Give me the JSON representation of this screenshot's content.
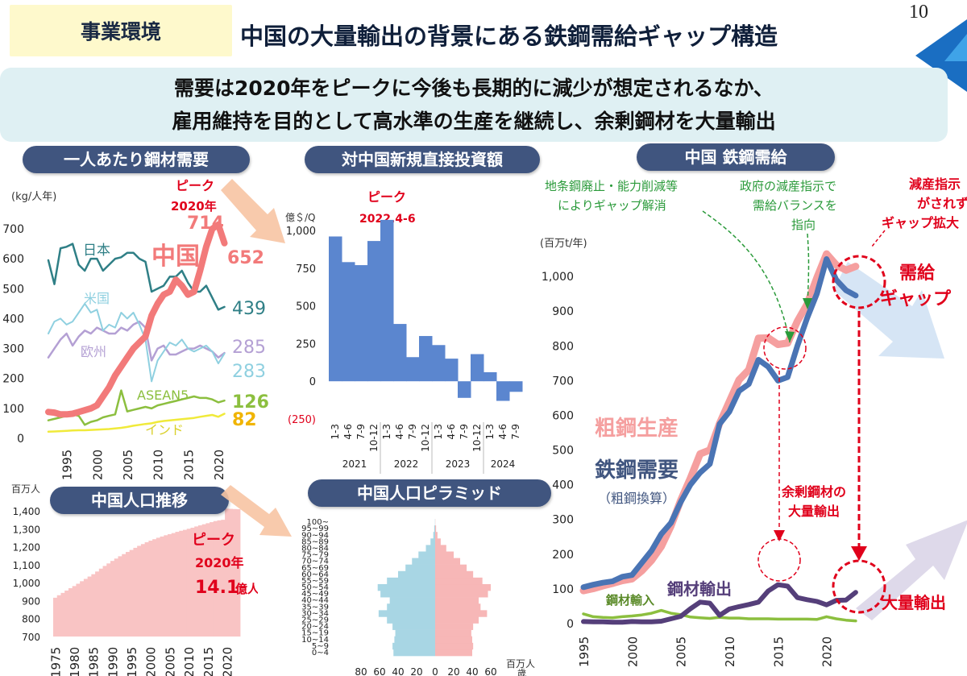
{
  "header": {
    "tag": "事業環境",
    "title": "中国の大量輸出の背景にある鉄鋼需給ギャップ構造",
    "page_number": "10"
  },
  "lead": {
    "line1": "需要は2020年をピークに今後も長期的に減少が想定されるなか、",
    "line2": "雇用維持を目的として高水準の生産を継続し、余剰鋼材を大量輸出"
  },
  "colors": {
    "china": "#f27a7a",
    "accent_red": "#e0001b",
    "navy": "#40557f",
    "bar_blue": "#5b86cf",
    "pop_fill": "#f9c4c4",
    "male": "#a8d6e4",
    "female": "#f7b7b7",
    "demand": "#4a74b4",
    "production": "#f59f9f",
    "export": "#553f7a",
    "import": "#8cbf3f",
    "japan": "#2f7f86",
    "us": "#8fd0e0",
    "eu": "#b4a0d4",
    "asean": "#8cbf3f",
    "india": "#f0ea3a"
  },
  "panels": {
    "per_capita": {
      "title": "一人あたり鋼材需要",
      "unit": "(kg/人年)",
      "peak_label": "ピーク",
      "peak_year": "2020年",
      "peak_value": "714",
      "labels": {
        "japan": "日本",
        "us": "米国",
        "eu": "欧州",
        "asean": "ASEAN5",
        "india": "インド",
        "china": "中国"
      },
      "end_values": {
        "china": "652",
        "japan": "439",
        "eu": "285",
        "us": "283",
        "asean": "126",
        "india": "82"
      }
    },
    "fdi": {
      "title": "対中国新規直接投資額",
      "unit": "億＄/Q",
      "peak_label": "ピーク",
      "peak_period": "2022.4-6"
    },
    "population": {
      "title": "中国人口推移",
      "unit": "百万人",
      "peak_label": "ピーク",
      "peak_year": "2020年",
      "peak_value": "14.1",
      "peak_unit": "億人"
    },
    "pyramid": {
      "title": "中国人口ピラミッド",
      "unit": "百万人",
      "age_unit": "歳"
    },
    "balance": {
      "title": "中国 鉄鋼需給",
      "unit": "(百万t/年)",
      "note_left": [
        "地条鋼廃止・能力削減等",
        "によりギャップ解消"
      ],
      "note_mid": [
        "政府の減産指示で",
        "需給バランスを",
        "指向"
      ],
      "note_right": [
        "減産指示",
        "がされず",
        "ギャップ拡大"
      ],
      "gap_label": [
        "需給",
        "ギャップ"
      ],
      "production_label": "粗鋼生産",
      "demand_label": "鉄鋼需要",
      "demand_sub": "（粗鋼換算）",
      "surplus_label": [
        "余剰鋼材の",
        "大量輸出"
      ],
      "export_label": "鋼材輸出",
      "import_label": "鋼材輸入",
      "mass_export_label": "大量輸出"
    }
  },
  "chart_data": [
    {
      "type": "line",
      "title": "一人あたり鋼材需要",
      "ylabel": "(kg/人年)",
      "ylim": [
        0,
        700
      ],
      "yticks": [
        0,
        100,
        200,
        300,
        400,
        500,
        600,
        700
      ],
      "xticks": [
        1995,
        2000,
        2005,
        2010,
        2015,
        2020
      ],
      "xlim": [
        1992,
        2022
      ],
      "series": [
        {
          "name": "中国",
          "x": [
            1992,
            1993,
            1994,
            1995,
            1996,
            1997,
            1998,
            1999,
            2000,
            2001,
            2002,
            2003,
            2004,
            2005,
            2006,
            2007,
            2008,
            2009,
            2010,
            2011,
            2012,
            2013,
            2014,
            2015,
            2016,
            2017,
            2018,
            2019,
            2020,
            2021
          ],
          "values": [
            88,
            86,
            80,
            80,
            82,
            88,
            94,
            100,
            110,
            140,
            170,
            210,
            240,
            270,
            300,
            320,
            340,
            410,
            450,
            480,
            490,
            530,
            510,
            480,
            490,
            560,
            640,
            700,
            714,
            652
          ]
        },
        {
          "name": "日本",
          "x": [
            1992,
            1993,
            1994,
            1995,
            1996,
            1997,
            1998,
            1999,
            2000,
            2001,
            2002,
            2003,
            2004,
            2005,
            2006,
            2007,
            2008,
            2009,
            2010,
            2011,
            2012,
            2013,
            2014,
            2015,
            2016,
            2017,
            2018,
            2019,
            2020,
            2021
          ],
          "values": [
            595,
            515,
            635,
            640,
            650,
            580,
            560,
            600,
            600,
            560,
            580,
            600,
            605,
            620,
            620,
            600,
            590,
            490,
            500,
            510,
            540,
            540,
            560,
            520,
            490,
            490,
            510,
            470,
            430,
            439
          ]
        },
        {
          "name": "米国",
          "x": [
            1992,
            1993,
            1994,
            1995,
            1996,
            1997,
            1998,
            1999,
            2000,
            2001,
            2002,
            2003,
            2004,
            2005,
            2006,
            2007,
            2008,
            2009,
            2010,
            2011,
            2012,
            2013,
            2014,
            2015,
            2016,
            2017,
            2018,
            2019,
            2020,
            2021
          ],
          "values": [
            350,
            390,
            400,
            380,
            390,
            420,
            450,
            420,
            430,
            360,
            380,
            370,
            420,
            400,
            420,
            380,
            330,
            190,
            260,
            290,
            320,
            310,
            330,
            300,
            290,
            300,
            310,
            290,
            250,
            283
          ]
        },
        {
          "name": "欧州",
          "x": [
            1992,
            1993,
            1994,
            1995,
            1996,
            1997,
            1998,
            1999,
            2000,
            2001,
            2002,
            2003,
            2004,
            2005,
            2006,
            2007,
            2008,
            2009,
            2010,
            2011,
            2012,
            2013,
            2014,
            2015,
            2016,
            2017,
            2018,
            2019,
            2020,
            2021
          ],
          "values": [
            270,
            300,
            330,
            350,
            310,
            340,
            360,
            350,
            370,
            360,
            350,
            350,
            370,
            360,
            380,
            390,
            370,
            260,
            300,
            310,
            280,
            280,
            290,
            300,
            300,
            310,
            300,
            290,
            270,
            285
          ]
        },
        {
          "name": "ASEAN5",
          "x": [
            1992,
            1993,
            1994,
            1995,
            1996,
            1997,
            1998,
            1999,
            2000,
            2001,
            2002,
            2003,
            2004,
            2005,
            2006,
            2007,
            2008,
            2009,
            2010,
            2011,
            2012,
            2013,
            2014,
            2015,
            2016,
            2017,
            2018,
            2019,
            2020,
            2021
          ],
          "values": [
            60,
            65,
            70,
            75,
            80,
            75,
            45,
            55,
            60,
            70,
            75,
            80,
            160,
            90,
            95,
            100,
            105,
            100,
            110,
            115,
            120,
            125,
            130,
            135,
            140,
            135,
            135,
            130,
            120,
            126
          ]
        },
        {
          "name": "インド",
          "x": [
            1992,
            1993,
            1994,
            1995,
            1996,
            1997,
            1998,
            1999,
            2000,
            2001,
            2002,
            2003,
            2004,
            2005,
            2006,
            2007,
            2008,
            2009,
            2010,
            2011,
            2012,
            2013,
            2014,
            2015,
            2016,
            2017,
            2018,
            2019,
            2020,
            2021
          ],
          "values": [
            22,
            23,
            24,
            25,
            26,
            27,
            27,
            28,
            29,
            30,
            31,
            33,
            35,
            38,
            42,
            45,
            48,
            50,
            55,
            58,
            60,
            62,
            64,
            66,
            68,
            72,
            75,
            78,
            72,
            82
          ]
        }
      ]
    },
    {
      "type": "bar",
      "title": "対中国新規直接投資額",
      "ylabel": "億＄/Q",
      "ylim": [
        -250,
        1000
      ],
      "yticks": [
        -250,
        0,
        250,
        500,
        750,
        1000
      ],
      "ytick_labels": [
        "(250)",
        "0",
        "250",
        "500",
        "750",
        "1,000"
      ],
      "categories": [
        "1-3",
        "4-6",
        "7-9",
        "10-12",
        "1-3",
        "4-6",
        "7-9",
        "10-12",
        "1-3",
        "4-6",
        "7-9",
        "10-12",
        "1-3",
        "4-6",
        "7-9"
      ],
      "groups": [
        {
          "label": "2021",
          "span": 4
        },
        {
          "label": "2022",
          "span": 4
        },
        {
          "label": "2023",
          "span": 4
        },
        {
          "label": "2024",
          "span": 3
        }
      ],
      "values": [
        960,
        790,
        770,
        930,
        1070,
        380,
        160,
        300,
        240,
        150,
        -110,
        180,
        60,
        -130,
        -70
      ]
    },
    {
      "type": "bar",
      "title": "中国人口推移",
      "ylabel": "百万人",
      "ylim": [
        700,
        1400
      ],
      "yticks": [
        700,
        800,
        900,
        1000,
        1100,
        1200,
        1300,
        1400
      ],
      "ytick_labels": [
        "700",
        "800",
        "900",
        "1,000",
        "1,100",
        "1,200",
        "1,300",
        "1,400"
      ],
      "xticks": [
        1975,
        1980,
        1985,
        1990,
        1995,
        2000,
        2005,
        2010,
        2015,
        2020
      ],
      "x": [
        1975,
        1976,
        1977,
        1978,
        1979,
        1980,
        1981,
        1982,
        1983,
        1984,
        1985,
        1986,
        1987,
        1988,
        1989,
        1990,
        1991,
        1992,
        1993,
        1994,
        1995,
        1996,
        1997,
        1998,
        1999,
        2000,
        2001,
        2002,
        2003,
        2004,
        2005,
        2006,
        2007,
        2008,
        2009,
        2010,
        2011,
        2012,
        2013,
        2014,
        2015,
        2016,
        2017,
        2018,
        2019,
        2020,
        2021,
        2022,
        2023
      ],
      "values": [
        916,
        930,
        943,
        956,
        969,
        981,
        994,
        1008,
        1021,
        1034,
        1047,
        1062,
        1078,
        1093,
        1107,
        1121,
        1134,
        1147,
        1159,
        1171,
        1182,
        1194,
        1205,
        1215,
        1225,
        1234,
        1242,
        1250,
        1257,
        1264,
        1270,
        1276,
        1283,
        1289,
        1294,
        1300,
        1306,
        1313,
        1319,
        1325,
        1331,
        1337,
        1343,
        1347,
        1350,
        1412,
        1411,
        1410,
        1409
      ]
    },
    {
      "type": "bar",
      "title": "中国人口ピラミッド",
      "xlabel": "百万人",
      "xticks": [
        -80,
        -60,
        -40,
        -20,
        0,
        20,
        40,
        60
      ],
      "xtick_labels": [
        "80",
        "60",
        "40",
        "20",
        "0",
        "20",
        "40",
        "60"
      ],
      "categories": [
        "0~4",
        "5~9",
        "10~14",
        "15~19",
        "20~24",
        "25~29",
        "30~34",
        "35~39",
        "40~44",
        "45~49",
        "50~54",
        "55~59",
        "60~64",
        "65~69",
        "70~74",
        "75~79",
        "80~84",
        "85~89",
        "90~94",
        "95~99",
        "100~"
      ],
      "series": [
        {
          "name": "男",
          "values": [
            45,
            46,
            44,
            43,
            46,
            52,
            61,
            52,
            49,
            59,
            62,
            52,
            40,
            32,
            25,
            18,
            10,
            5,
            2,
            1,
            0.2
          ]
        },
        {
          "name": "女",
          "values": [
            40,
            41,
            40,
            39,
            41,
            47,
            56,
            49,
            47,
            57,
            60,
            51,
            41,
            34,
            27,
            20,
            12,
            6,
            2.5,
            1,
            0.2
          ]
        }
      ]
    },
    {
      "type": "line",
      "title": "中国 鉄鋼需給",
      "ylabel": "(百万t/年)",
      "ylim": [
        0,
        1100
      ],
      "yticks": [
        0,
        100,
        200,
        300,
        400,
        500,
        600,
        700,
        800,
        900,
        1000
      ],
      "ytick_labels": [
        "0",
        "100",
        "200",
        "300",
        "400",
        "500",
        "600",
        "700",
        "800",
        "900",
        "1,000"
      ],
      "xticks": [
        1995,
        2000,
        2005,
        2010,
        2015,
        2020
      ],
      "xlim": [
        1995,
        2024
      ],
      "series": [
        {
          "name": "粗鋼生産",
          "x": [
            1995,
            1996,
            1997,
            1998,
            1999,
            2000,
            2001,
            2002,
            2003,
            2004,
            2005,
            2006,
            2007,
            2008,
            2009,
            2010,
            2011,
            2012,
            2013,
            2014,
            2015,
            2016,
            2017,
            2018,
            2019,
            2020,
            2021,
            2022,
            2023
          ],
          "values": [
            95,
            101,
            109,
            116,
            124,
            129,
            152,
            182,
            222,
            281,
            355,
            419,
            489,
            500,
            577,
            639,
            702,
            731,
            822,
            823,
            804,
            808,
            871,
            920,
            996,
            1065,
            1033,
            1018,
            1029
          ]
        },
        {
          "name": "鉄鋼需要",
          "x": [
            1995,
            1996,
            1997,
            1998,
            1999,
            2000,
            2001,
            2002,
            2003,
            2004,
            2005,
            2006,
            2007,
            2008,
            2009,
            2010,
            2011,
            2012,
            2013,
            2014,
            2015,
            2016,
            2017,
            2018,
            2019,
            2020,
            2021,
            2022,
            2023
          ],
          "values": [
            105,
            112,
            118,
            122,
            135,
            140,
            175,
            210,
            258,
            290,
            350,
            400,
            435,
            460,
            575,
            610,
            670,
            690,
            760,
            740,
            700,
            710,
            800,
            880,
            950,
            1050,
            990,
            960,
            945
          ]
        },
        {
          "name": "鋼材輸出",
          "x": [
            1995,
            1996,
            1997,
            1998,
            1999,
            2000,
            2001,
            2002,
            2003,
            2004,
            2005,
            2006,
            2007,
            2008,
            2009,
            2010,
            2011,
            2012,
            2013,
            2014,
            2015,
            2016,
            2017,
            2018,
            2019,
            2020,
            2021,
            2022,
            2023
          ],
          "values": [
            6,
            5,
            5,
            4,
            4,
            6,
            5,
            5,
            7,
            14,
            21,
            43,
            62,
            59,
            24,
            42,
            49,
            55,
            62,
            94,
            112,
            108,
            75,
            69,
            64,
            54,
            67,
            68,
            90
          ]
        },
        {
          "name": "鋼材輸入",
          "x": [
            1995,
            1996,
            1997,
            1998,
            1999,
            2000,
            2001,
            2002,
            2003,
            2004,
            2005,
            2006,
            2007,
            2008,
            2009,
            2010,
            2011,
            2012,
            2013,
            2014,
            2015,
            2016,
            2017,
            2018,
            2019,
            2020,
            2021,
            2022,
            2023
          ],
          "values": [
            28,
            20,
            18,
            17,
            20,
            22,
            25,
            30,
            38,
            30,
            26,
            19,
            17,
            15,
            18,
            16,
            16,
            14,
            14,
            14,
            13,
            13,
            13,
            13,
            12,
            20,
            14,
            10,
            8
          ]
        }
      ]
    }
  ]
}
